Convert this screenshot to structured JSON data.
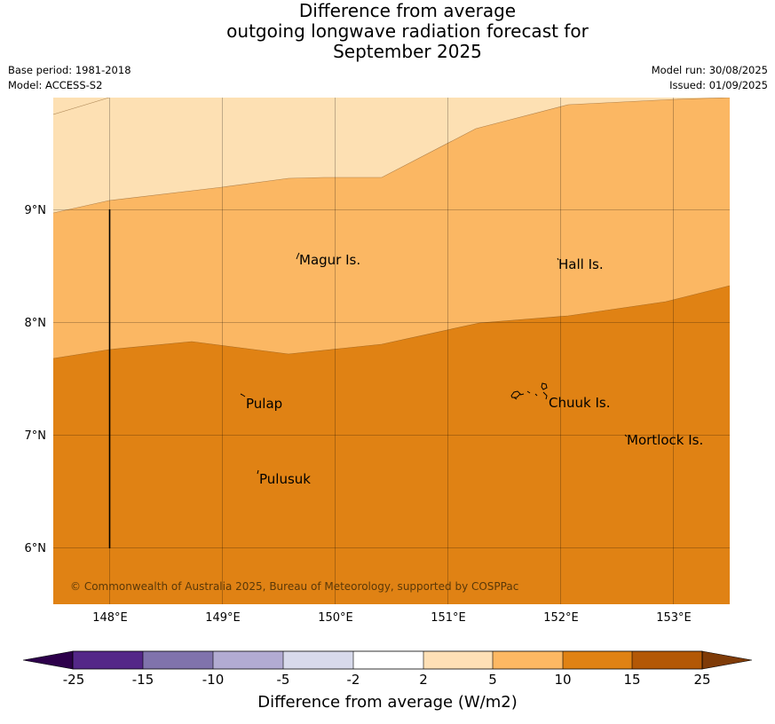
{
  "title": {
    "line1": "Difference from average",
    "line2": "outgoing longwave radiation forecast for",
    "line3": "September 2025"
  },
  "meta": {
    "base_period": "Base period: 1981-2018",
    "model": "Model: ACCESS-S2",
    "model_run": "Model run: 30/08/2025",
    "issued": "Issued: 01/09/2025"
  },
  "map": {
    "lat_labels": [
      "9°N",
      "8°N",
      "7°N",
      "6°N"
    ],
    "lon_labels": [
      "148°E",
      "149°E",
      "150°E",
      "151°E",
      "152°E",
      "153°E"
    ],
    "places": [
      "Magur Is.",
      "Hall Is.",
      "Pulap",
      "Chuuk Is.",
      "Mortlock Is.",
      "Pulusuk"
    ],
    "copyright": "© Commonwealth of Australia 2025, Bureau of Meteorology, supported by COSPPac",
    "colors": {
      "band_2_5": "#fde0b3",
      "band_5_10": "#fbb763",
      "band_10_15": "#e08214"
    }
  },
  "colorbar": {
    "tick_labels": [
      "-25",
      "-15",
      "-10",
      "-5",
      "-2",
      "2",
      "5",
      "10",
      "15",
      "25"
    ],
    "colors": [
      "#2d004b",
      "#542788",
      "#8073ac",
      "#b2abd2",
      "#d8daeb",
      "#ffffff",
      "#fee0b6",
      "#fdb863",
      "#e08214",
      "#b35806",
      "#7f3b08"
    ],
    "title": "Difference from average (W/m2)"
  }
}
